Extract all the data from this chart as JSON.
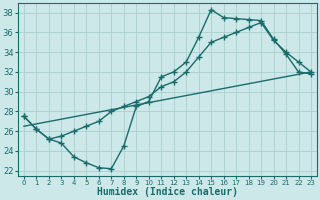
{
  "bg_color": "#cce8e8",
  "grid_color": "#aacece",
  "line_color": "#1a6b6b",
  "line_width": 1.0,
  "marker": "+",
  "markersize": 4,
  "markeredgewidth": 1.0,
  "xlabel": "Humidex (Indice chaleur)",
  "xlabel_fontsize": 7,
  "ylim": [
    21.5,
    39
  ],
  "xlim": [
    -0.5,
    23.5
  ],
  "yticks": [
    22,
    24,
    26,
    28,
    30,
    32,
    34,
    36,
    38
  ],
  "xticks": [
    0,
    1,
    2,
    3,
    4,
    5,
    6,
    7,
    8,
    9,
    10,
    11,
    12,
    13,
    14,
    15,
    16,
    17,
    18,
    19,
    20,
    21,
    22,
    23
  ],
  "line1_x": [
    0,
    23
  ],
  "line1_y": [
    26.5,
    32.0
  ],
  "line2_x": [
    0,
    1,
    2,
    3,
    4,
    5,
    6,
    7,
    8,
    9,
    10,
    11,
    12,
    13,
    14,
    15,
    16,
    17,
    18,
    19,
    20,
    21,
    22,
    23
  ],
  "line2_y": [
    27.5,
    26.2,
    25.2,
    24.8,
    23.4,
    22.8,
    22.3,
    22.2,
    24.5,
    28.5,
    29.0,
    31.5,
    32.0,
    33.0,
    35.5,
    38.3,
    37.5,
    37.4,
    37.3,
    37.2,
    35.3,
    33.8,
    32.0,
    31.8
  ],
  "line3_x": [
    0,
    1,
    2,
    3,
    4,
    5,
    6,
    7,
    8,
    9,
    10,
    11,
    12,
    13,
    14,
    15,
    16,
    17,
    18,
    19,
    20,
    21,
    22,
    23
  ],
  "line3_y": [
    27.5,
    26.2,
    25.2,
    25.5,
    26.0,
    26.5,
    27.0,
    28.0,
    28.5,
    29.0,
    29.5,
    30.5,
    31.0,
    32.0,
    33.5,
    35.0,
    35.5,
    36.0,
    36.5,
    37.0,
    35.2,
    34.0,
    33.0,
    32.0
  ]
}
